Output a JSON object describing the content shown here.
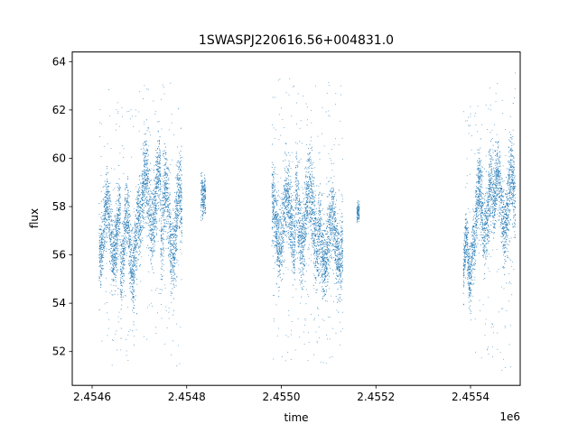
{
  "chart_data": {
    "type": "scatter",
    "title": "1SWASPJ220616.56+004831.0",
    "xlabel": "time",
    "ylabel": "flux",
    "x_offset_label": "1e6",
    "x_ticks": [
      2454600,
      2454800,
      2455000,
      2455200,
      2455400
    ],
    "x_tick_labels": [
      "2.4546",
      "2.4548",
      "2.4550",
      "2.4552",
      "2.4554"
    ],
    "y_ticks": [
      52,
      54,
      56,
      58,
      60,
      62,
      64
    ],
    "y_tick_labels": [
      "52",
      "54",
      "56",
      "58",
      "60",
      "62",
      "64"
    ],
    "xlim": [
      2454558,
      2455505
    ],
    "ylim": [
      50.6,
      64.4
    ],
    "grid": false,
    "marker_color": "#1f77b4",
    "series": [
      {
        "segments": [
          {
            "x": [
              2454615,
              2454660
            ],
            "center": 57.0,
            "amp": 1.0,
            "spread": 0.7,
            "outliers": [
              51.4,
              63.1
            ]
          },
          {
            "x": [
              2454660,
              2454700
            ],
            "center": 56.4,
            "amp": 1.2,
            "spread": 0.8,
            "outliers": [
              51.6,
              62.4
            ]
          },
          {
            "x": [
              2454700,
              2454745
            ],
            "center": 58.3,
            "amp": 1.1,
            "spread": 0.8,
            "outliers": [
              52.3,
              63.5
            ]
          },
          {
            "x": [
              2454745,
              2454790
            ],
            "center": 57.3,
            "amp": 1.4,
            "spread": 0.9,
            "outliers": [
              51.4,
              63.2
            ]
          },
          {
            "x": [
              2454830,
              2454840
            ],
            "center": 58.4,
            "amp": 0.2,
            "spread": 0.4,
            "outliers": []
          },
          {
            "x": [
              2454980,
              2455030
            ],
            "center": 57.4,
            "amp": 1.0,
            "spread": 0.8,
            "outliers": [
              51.4,
              63.4
            ]
          },
          {
            "x": [
              2455030,
              2455080
            ],
            "center": 57.6,
            "amp": 1.2,
            "spread": 0.9,
            "outliers": [
              51.4,
              63.1
            ]
          },
          {
            "x": [
              2455080,
              2455130
            ],
            "center": 56.6,
            "amp": 1.0,
            "spread": 0.8,
            "outliers": [
              51.2,
              63.3
            ]
          },
          {
            "x": [
              2455160,
              2455165
            ],
            "center": 57.8,
            "amp": 0.1,
            "spread": 0.2,
            "outliers": []
          },
          {
            "x": [
              2455385,
              2455410
            ],
            "center": 55.8,
            "amp": 0.9,
            "spread": 0.6,
            "outliers": [
              53.3,
              62.3
            ]
          },
          {
            "x": [
              2455410,
              2455450
            ],
            "center": 57.9,
            "amp": 1.0,
            "spread": 0.8,
            "outliers": [
              51.5,
              63.1
            ]
          },
          {
            "x": [
              2455450,
              2455495
            ],
            "center": 58.2,
            "amp": 1.1,
            "spread": 0.8,
            "outliers": [
              51.2,
              63.6
            ]
          }
        ]
      }
    ]
  }
}
